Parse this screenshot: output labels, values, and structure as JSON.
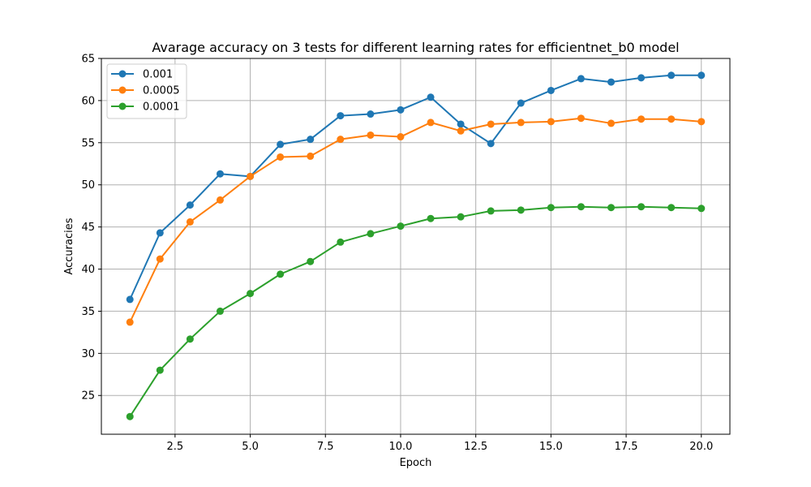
{
  "chart_data": {
    "type": "line",
    "title": "Avarage accuracy on 3 tests for different learning rates for efficientnet_b0 model",
    "xlabel": "Epoch",
    "ylabel": "Accuracies",
    "xlim": [
      0.05,
      20.95
    ],
    "ylim": [
      20.4,
      65
    ],
    "xticks": [
      2.5,
      5.0,
      7.5,
      10.0,
      12.5,
      15.0,
      17.5,
      20.0
    ],
    "xtick_labels": [
      "2.5",
      "5.0",
      "7.5",
      "10.0",
      "12.5",
      "15.0",
      "17.5",
      "20.0"
    ],
    "yticks": [
      25,
      30,
      35,
      40,
      45,
      50,
      55,
      60,
      65
    ],
    "ytick_labels": [
      "25",
      "30",
      "35",
      "40",
      "45",
      "50",
      "55",
      "60",
      "65"
    ],
    "grid": true,
    "legend_position": "top-left",
    "x": [
      1,
      2,
      3,
      4,
      5,
      6,
      7,
      8,
      9,
      10,
      11,
      12,
      13,
      14,
      15,
      16,
      17,
      18,
      19,
      20
    ],
    "series": [
      {
        "name": "0.001",
        "color": "#1f77b4",
        "values": [
          36.4,
          44.3,
          47.6,
          51.3,
          51.0,
          54.8,
          55.4,
          58.2,
          58.4,
          58.9,
          60.4,
          57.2,
          54.9,
          59.7,
          61.2,
          62.6,
          62.2,
          62.7,
          63.0,
          63.0
        ]
      },
      {
        "name": "0.0005",
        "color": "#ff7f0e",
        "values": [
          33.7,
          41.2,
          45.6,
          48.2,
          51.0,
          53.3,
          53.4,
          55.4,
          55.9,
          55.7,
          57.4,
          56.4,
          57.2,
          57.4,
          57.5,
          57.9,
          57.3,
          57.8,
          57.8,
          57.5
        ]
      },
      {
        "name": "0.0001",
        "color": "#2ca02c",
        "values": [
          22.5,
          28.0,
          31.7,
          35.0,
          37.1,
          39.4,
          40.9,
          43.2,
          44.2,
          45.1,
          46.0,
          46.2,
          46.9,
          47.0,
          47.3,
          47.4,
          47.3,
          47.4,
          47.3,
          47.2
        ]
      }
    ]
  }
}
